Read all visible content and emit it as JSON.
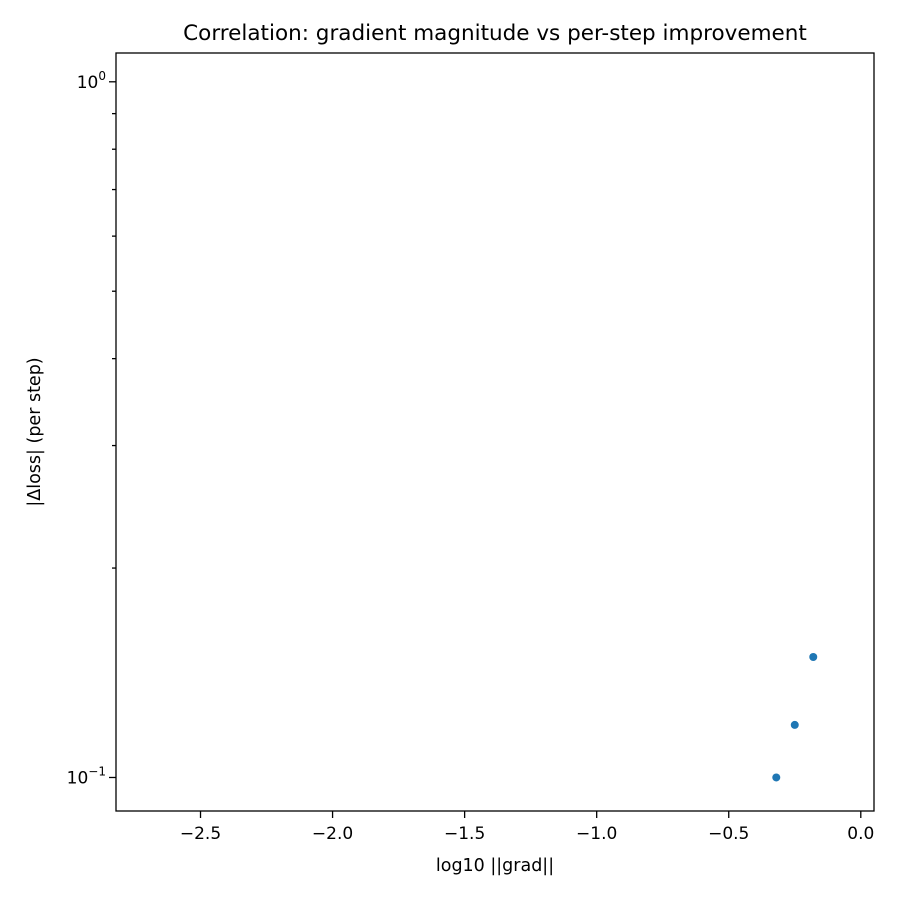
{
  "chart_data": {
    "type": "scatter",
    "title": "Correlation: gradient magnitude vs per-step improvement",
    "xlabel": "log10 ||grad||",
    "ylabel": "|Δloss| (per step)",
    "xlim": [
      -2.82,
      0.05
    ],
    "ylim": [
      0.0895,
      1.1
    ],
    "y_scale": "log",
    "x_ticks": [
      -2.5,
      -2.0,
      -1.5,
      -1.0,
      -0.5,
      0.0
    ],
    "x_tick_labels": [
      "−2.5",
      "−2.0",
      "−1.5",
      "−1.0",
      "−0.5",
      "0.0"
    ],
    "y_major_ticks": [
      {
        "value": 0.1,
        "base": "10",
        "exp": "−1"
      },
      {
        "value": 1.0,
        "base": "10",
        "exp": "0"
      }
    ],
    "y_minor_ticks": [
      0.2,
      0.3,
      0.4,
      0.5,
      0.6,
      0.7,
      0.8,
      0.9
    ],
    "grid": false,
    "series": [
      {
        "color": "#1f77b4",
        "points": [
          {
            "x": -0.32,
            "y": 0.1
          },
          {
            "x": -0.25,
            "y": 0.119
          },
          {
            "x": -0.18,
            "y": 0.149
          }
        ]
      }
    ]
  }
}
